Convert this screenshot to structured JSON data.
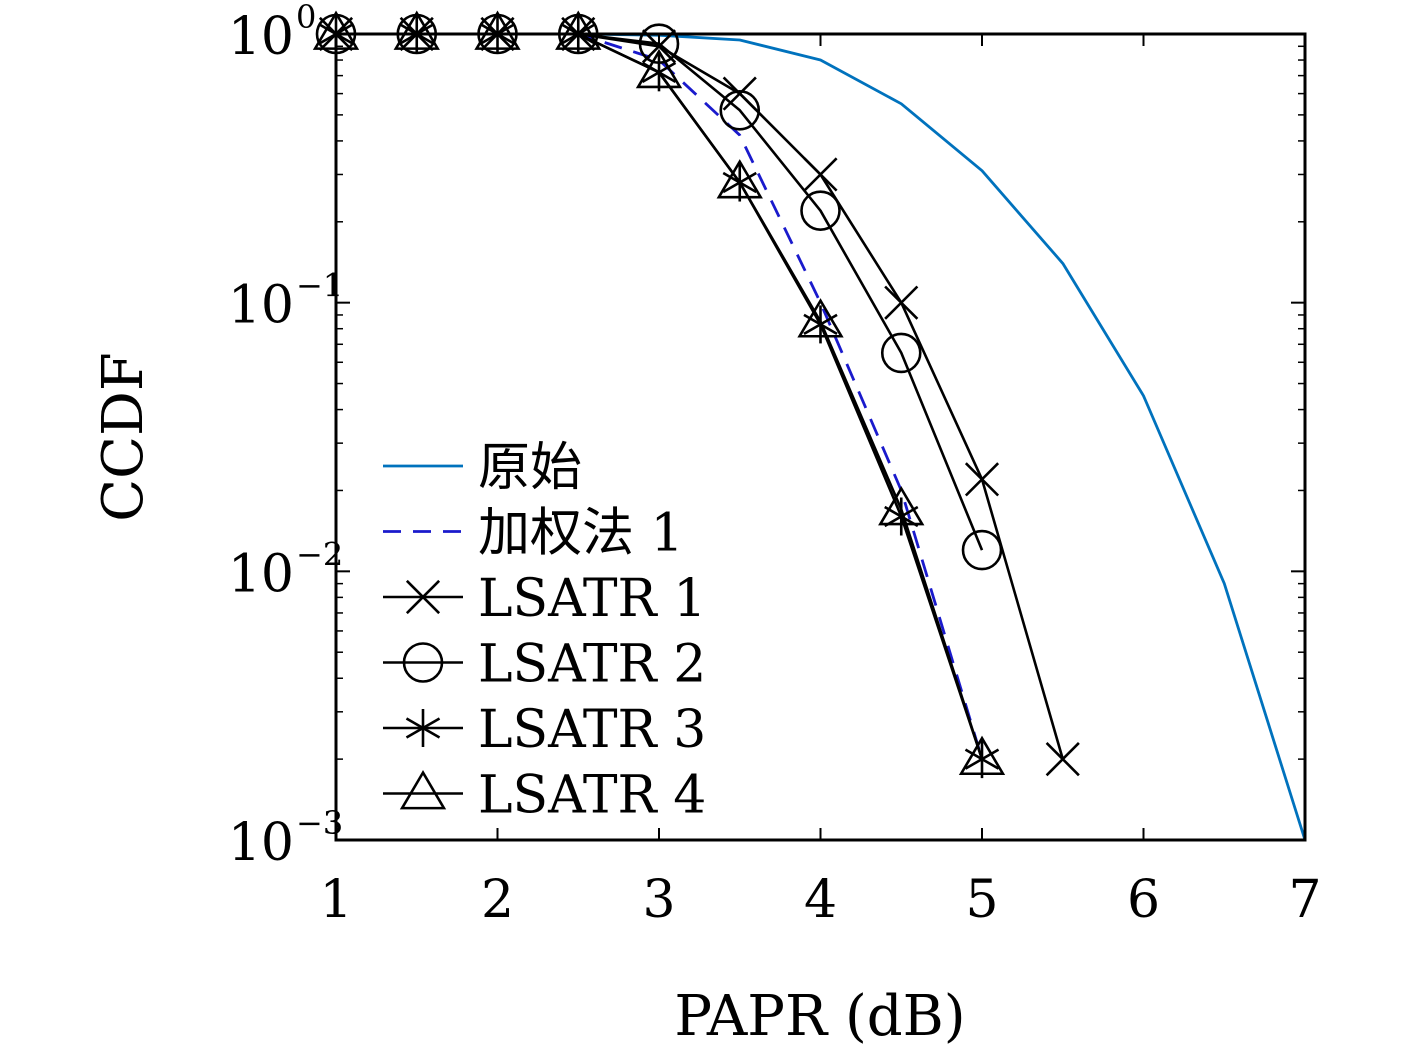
{
  "chart_data": {
    "type": "line",
    "xlabel": "PAPR (dB)",
    "ylabel": "CCDF",
    "xlim": [
      1,
      7
    ],
    "ylim": [
      0.001,
      1
    ],
    "yscale": "log",
    "xticks": [
      "1",
      "2",
      "3",
      "4",
      "5",
      "6",
      "7"
    ],
    "yticks": [
      {
        "base": "10",
        "exp": "0"
      },
      {
        "base": "10",
        "exp": "−1"
      },
      {
        "base": "10",
        "exp": "−2"
      },
      {
        "base": "10",
        "exp": "−3"
      }
    ],
    "grid": false,
    "legend_position": "lower-left",
    "series": [
      {
        "name": "原始",
        "color": "#0072BD",
        "line": "solid",
        "marker": "none",
        "x": [
          1,
          1.5,
          2,
          2.5,
          3,
          3.5,
          4,
          4.5,
          5,
          5.5,
          6,
          6.5,
          7
        ],
        "y": [
          1,
          1,
          1,
          1,
          0.99,
          0.95,
          0.8,
          0.55,
          0.31,
          0.14,
          0.045,
          0.009,
          0.001
        ]
      },
      {
        "name": "加权法 1",
        "color": "#1a1acc",
        "line": "dashed",
        "marker": "none",
        "x": [
          1,
          1.5,
          2,
          2.5,
          3,
          3.5,
          4,
          4.5,
          5
        ],
        "y": [
          1,
          1,
          1,
          1,
          0.8,
          0.42,
          0.1,
          0.02,
          0.002
        ]
      },
      {
        "name": "LSATR 1",
        "color": "#000000",
        "line": "solid",
        "marker": "x",
        "x": [
          1,
          1.5,
          2,
          2.5,
          3,
          3.5,
          4,
          4.5,
          5,
          5.5
        ],
        "y": [
          1,
          1,
          1,
          1,
          0.9,
          0.6,
          0.3,
          0.1,
          0.022,
          0.002
        ]
      },
      {
        "name": "LSATR 2",
        "color": "#000000",
        "line": "solid",
        "marker": "circle",
        "x": [
          1,
          1.5,
          2,
          2.5,
          3,
          3.5,
          4,
          4.5,
          5
        ],
        "y": [
          1,
          1,
          1,
          1,
          0.92,
          0.52,
          0.22,
          0.065,
          0.012
        ]
      },
      {
        "name": "LSATR 3",
        "color": "#000000",
        "line": "solid",
        "marker": "asterisk",
        "x": [
          1,
          1.5,
          2,
          2.5,
          3,
          3.5,
          4,
          4.5,
          5
        ],
        "y": [
          1,
          1,
          1,
          1,
          0.72,
          0.28,
          0.083,
          0.016,
          0.002
        ]
      },
      {
        "name": "LSATR 4",
        "color": "#000000",
        "line": "solid",
        "marker": "triangle",
        "x": [
          1,
          1.5,
          2,
          2.5,
          3,
          3.5,
          4,
          4.5,
          5
        ],
        "y": [
          1,
          1,
          1,
          1,
          0.72,
          0.28,
          0.085,
          0.017,
          0.002
        ]
      }
    ]
  }
}
